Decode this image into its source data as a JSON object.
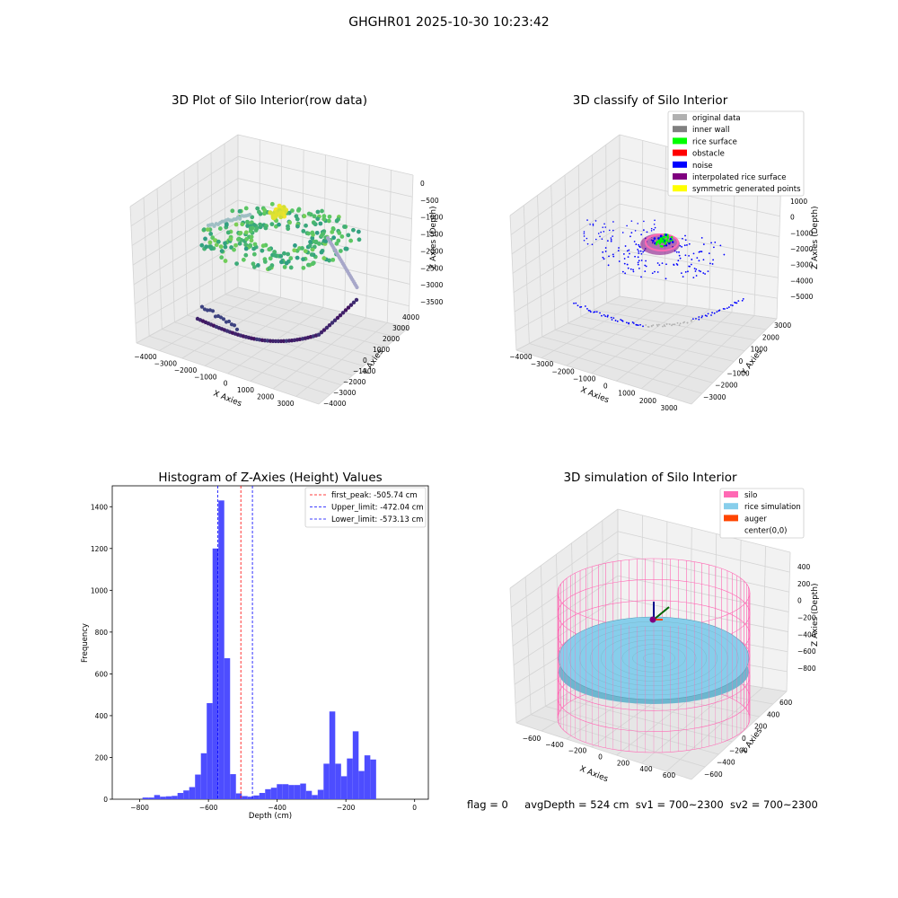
{
  "figure": {
    "suptitle": "GHGHR01 2025-10-30 10:23:42",
    "status": {
      "flag": "flag = 0",
      "avg_depth": "avgDepth = 524 cm",
      "sv1": "sv1 = 700~2300",
      "sv2": "sv2 = 700~2300"
    }
  },
  "colors": {
    "histogram_bar": "#4d4dff",
    "first_peak": "#ff0000",
    "limits": "#0000ff",
    "silo": "#ff69b4",
    "rice_simulation": "#87ceeb",
    "auger": "#ff4500",
    "original_data": "#b0b0b0",
    "inner_wall": "#808080",
    "rice_surface": "#00ff00",
    "obstacle": "#ff0000",
    "noise": "#0000ff",
    "interpolated_rice_surface": "#800080",
    "symmetric_generated_points": "#ffff00"
  },
  "chart_data": [
    {
      "type": "scatter",
      "projection": "3d",
      "title": "3D Plot of Silo Interior(row data)",
      "xlabel": "X Axies",
      "ylabel": "Y Axies",
      "zlabel": "Z Axies (Depth)",
      "xticks": [
        "−4000",
        "−3000",
        "−2000",
        "−1000",
        "0",
        "1000",
        "2000",
        "3000"
      ],
      "yticks": [
        "−4000",
        "−3000",
        "−2000",
        "−1000",
        "0",
        "1000",
        "2000",
        "3000",
        "4000"
      ],
      "zticks": [
        "0",
        "−500",
        "−1000",
        "−1500",
        "−2000",
        "−2500",
        "−3000",
        "−3500"
      ],
      "xlim": [
        -4000,
        3500
      ],
      "ylim": [
        -4000,
        4000
      ],
      "zlim": [
        -3500,
        0
      ],
      "colormap": "viridis (by Z)",
      "grid": true
    },
    {
      "type": "scatter",
      "projection": "3d",
      "title": "3D classify of Silo Interior",
      "xlabel": "X Axies",
      "ylabel": "Y Axies",
      "zlabel": "Z Axies (Depth)",
      "xticks": [
        "−4000",
        "−3000",
        "−2000",
        "−1000",
        "0",
        "1000",
        "2000",
        "3000"
      ],
      "yticks": [
        "−3000",
        "−2000",
        "−1000",
        "0",
        "1000",
        "2000",
        "3000"
      ],
      "zticks": [
        "1000",
        "0",
        "−1000",
        "−2000",
        "−3000",
        "−4000",
        "−5000"
      ],
      "legend": [
        "original data",
        "inner wall",
        "rice surface",
        "obstacle",
        "noise",
        "interpolated rice surface",
        "symmetric generated points"
      ],
      "legend_position": "top-right",
      "grid": true
    },
    {
      "type": "bar",
      "title": "Histogram of Z-Axies (Height) Values",
      "xlabel": "Depth (cm)",
      "ylabel": "Frequency",
      "xlim": [
        -880,
        40
      ],
      "ylim": [
        0,
        1500
      ],
      "xticks": [
        -800,
        -600,
        -400,
        -200,
        0
      ],
      "xtick_labels": [
        "−800",
        "−600",
        "−400",
        "−200",
        "0"
      ],
      "yticks": [
        0,
        200,
        400,
        600,
        800,
        1000,
        1200,
        1400
      ],
      "yticks_labels": [
        "0",
        "200",
        "400",
        "600",
        "800",
        "1000",
        "1200",
        "1400"
      ],
      "bin_start": -860,
      "bin_width": 17,
      "values": [
        0,
        0,
        0,
        0,
        8,
        8,
        20,
        12,
        14,
        16,
        30,
        42,
        58,
        118,
        220,
        460,
        1200,
        1430,
        675,
        120,
        28,
        15,
        12,
        18,
        30,
        48,
        55,
        72,
        72,
        68,
        68,
        75,
        40,
        20,
        45,
        170,
        420,
        170,
        110,
        195,
        325,
        135,
        210,
        190
      ],
      "lines": [
        {
          "label": "first_peak: -505.74 cm",
          "x": -505.74,
          "style": "dashed",
          "color": "#ff0000"
        },
        {
          "label": "Upper_limit: -472.04 cm",
          "x": -472.04,
          "style": "dashed",
          "color": "#0000ff"
        },
        {
          "label": "Lower_limit: -573.13 cm",
          "x": -573.13,
          "style": "dashed",
          "color": "#0000ff"
        }
      ],
      "legend_position": "top-right",
      "grid": false
    },
    {
      "type": "surface",
      "projection": "3d",
      "title": "3D simulation of Silo Interior",
      "xlabel": "X Axies",
      "ylabel": "Y Axies",
      "zlabel": "Z Axies (Depth)",
      "xticks": [
        "−600",
        "−400",
        "−200",
        "0",
        "200",
        "400",
        "600"
      ],
      "yticks": [
        "−600",
        "−400",
        "−200",
        "0",
        "200",
        "400",
        "600"
      ],
      "zticks": [
        "400",
        "200",
        "0",
        "−200",
        "−400",
        "−600",
        "−800"
      ],
      "legend": [
        "silo",
        "rice simulation",
        "auger",
        "center(0,0)"
      ],
      "legend_position": "top-right",
      "grid": true
    }
  ]
}
